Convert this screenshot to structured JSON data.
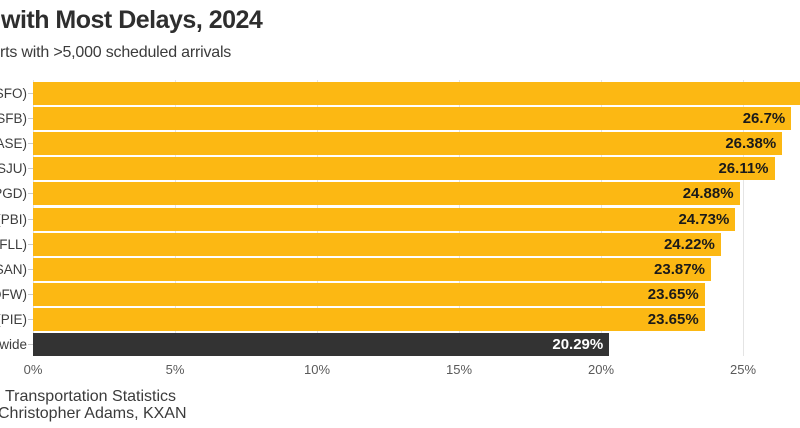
{
  "header": {
    "title": "with Most Delays, 2024",
    "subtitle": "rts with >5,000 scheduled arrivals"
  },
  "footer": {
    "source_line": "Transportation Statistics",
    "credit_line": "Christopher Adams, KXAN"
  },
  "colors": {
    "bar": "#FCB813",
    "highlight_bar": "#333333",
    "bar_value_text": "#1a1a1a",
    "highlight_value_text": "#ffffff",
    "gridline": "#e4e4e4",
    "axis_text": "#5a5a5a",
    "row_label_text": "#3d3d3d",
    "title_text": "#2e2e2e"
  },
  "chart_data": {
    "type": "bar",
    "orientation": "horizontal",
    "title": "with Most Delays, 2024",
    "subtitle": "rts with >5,000 scheduled arrivals",
    "xlabel": "",
    "ylabel": "",
    "xlim": [
      0,
      27
    ],
    "grid": true,
    "x_axis": {
      "tick_values": [
        0,
        5,
        10,
        15,
        20,
        25
      ],
      "tick_labels": [
        "0%",
        "5%",
        "10%",
        "15%",
        "20%",
        "25%"
      ]
    },
    "rows": [
      {
        "label": "SFO)",
        "value": null,
        "value_label": "",
        "highlight": false,
        "clipped_at_right_edge": true
      },
      {
        "label": "SFB)",
        "value": 26.7,
        "value_label": "26.7%",
        "highlight": false,
        "clipped_at_right_edge": false
      },
      {
        "label": "ASE)",
        "value": 26.38,
        "value_label": "26.38%",
        "highlight": false,
        "clipped_at_right_edge": false
      },
      {
        "label": "SJU)",
        "value": 26.11,
        "value_label": "26.11%",
        "highlight": false,
        "clipped_at_right_edge": false
      },
      {
        "label": "PGD)",
        "value": 24.88,
        "value_label": "24.88%",
        "highlight": false,
        "clipped_at_right_edge": false
      },
      {
        "label": "(PBI)",
        "value": 24.73,
        "value_label": "24.73%",
        "highlight": false,
        "clipped_at_right_edge": false
      },
      {
        "label": "(FLL)",
        "value": 24.22,
        "value_label": "24.22%",
        "highlight": false,
        "clipped_at_right_edge": false
      },
      {
        "label": "SAN)",
        "value": 23.87,
        "value_label": "23.87%",
        "highlight": false,
        "clipped_at_right_edge": false
      },
      {
        "label": "DFW)",
        "value": 23.65,
        "value_label": "23.65%",
        "highlight": false,
        "clipped_at_right_edge": false
      },
      {
        "label": "(PIE)",
        "value": 23.65,
        "value_label": "23.65%",
        "highlight": false,
        "clipped_at_right_edge": false
      },
      {
        "label": "wide",
        "value": 20.29,
        "value_label": "20.29%",
        "highlight": true,
        "clipped_at_right_edge": false
      }
    ]
  }
}
